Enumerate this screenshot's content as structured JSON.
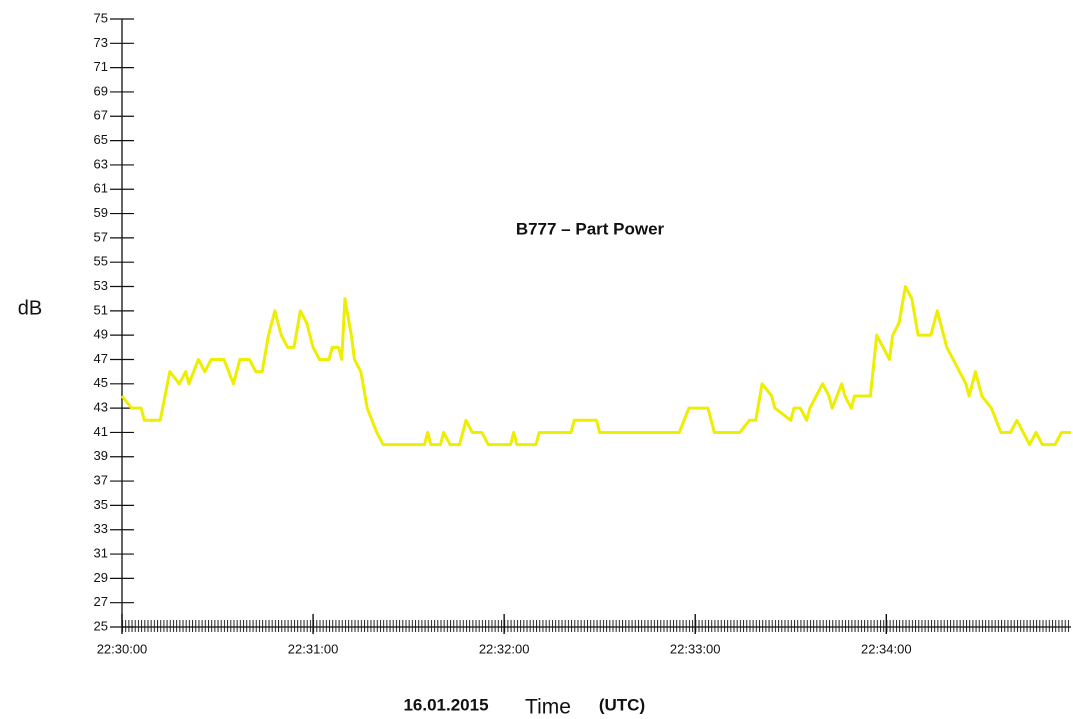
{
  "chart_data": {
    "type": "line",
    "title": "B777 – Part Power",
    "ylabel": "dB",
    "date": "16.01.2015",
    "xlabel": "Time",
    "xlabel_unit": "(UTC)",
    "color": "#eeee00",
    "xlim": [
      "22:30:00",
      "22:34:58"
    ],
    "xticks": [
      "22:30:00",
      "22:31:00",
      "22:32:00",
      "22:33:00",
      "22:34:00"
    ],
    "ylim": [
      25,
      75
    ],
    "yticks": [
      25,
      27,
      29,
      31,
      33,
      35,
      37,
      39,
      41,
      43,
      45,
      47,
      49,
      51,
      53,
      55,
      57,
      59,
      61,
      63,
      65,
      67,
      69,
      71,
      73,
      75
    ],
    "x": [
      "22:30:00",
      "22:30:03",
      "22:30:06",
      "22:30:07",
      "22:30:12",
      "22:30:15",
      "22:30:18",
      "22:30:20",
      "22:30:21",
      "22:30:24",
      "22:30:26",
      "22:30:28",
      "22:30:32",
      "22:30:35",
      "22:30:37",
      "22:30:40",
      "22:30:42",
      "22:30:44",
      "22:30:46",
      "22:30:48",
      "22:30:50",
      "22:30:52",
      "22:30:54",
      "22:30:56",
      "22:30:58",
      "22:31:00",
      "22:31:02",
      "22:31:05",
      "22:31:06",
      "22:31:08",
      "22:31:09",
      "22:31:10",
      "22:31:12",
      "22:31:13",
      "22:31:15",
      "22:31:17",
      "22:31:20",
      "22:31:22",
      "22:31:26",
      "22:31:35",
      "22:31:36",
      "22:31:37",
      "22:31:40",
      "22:31:41",
      "22:31:43",
      "22:31:46",
      "22:31:48",
      "22:31:50",
      "22:31:53",
      "22:31:55",
      "22:32:02",
      "22:32:03",
      "22:32:04",
      "22:32:10",
      "22:32:11",
      "22:32:21",
      "22:32:22",
      "22:32:29",
      "22:32:30",
      "22:32:55",
      "22:32:58",
      "22:33:04",
      "22:33:06",
      "22:33:14",
      "22:33:17",
      "22:33:19",
      "22:33:21",
      "22:33:24",
      "22:33:25",
      "22:33:30",
      "22:33:31",
      "22:33:33",
      "22:33:35",
      "22:33:36",
      "22:33:38",
      "22:33:40",
      "22:33:42",
      "22:33:43",
      "22:33:46",
      "22:33:47",
      "22:33:49",
      "22:33:50",
      "22:33:55",
      "22:33:57",
      "22:33:59",
      "22:34:01",
      "22:34:02",
      "22:34:04",
      "22:34:06",
      "22:34:08",
      "22:34:10",
      "22:34:14",
      "22:34:16",
      "22:34:19",
      "22:34:21",
      "22:34:23",
      "22:34:25",
      "22:34:26",
      "22:34:28",
      "22:34:30",
      "22:34:33",
      "22:34:36",
      "22:34:39",
      "22:34:41",
      "22:34:43",
      "22:34:45",
      "22:34:47",
      "22:34:49",
      "22:34:53",
      "22:34:55",
      "22:34:56",
      "22:34:58"
    ],
    "values": [
      44,
      43,
      43,
      42,
      42,
      46,
      45,
      46,
      45,
      47,
      46,
      47,
      47,
      45,
      47,
      47,
      46,
      46,
      49,
      51,
      49,
      48,
      48,
      51,
      50,
      48,
      47,
      47,
      48,
      48,
      47,
      52,
      49,
      47,
      46,
      43,
      41,
      40,
      40,
      40,
      41,
      40,
      40,
      41,
      40,
      40,
      42,
      41,
      41,
      40,
      40,
      41,
      40,
      40,
      41,
      41,
      42,
      42,
      41,
      41,
      43,
      43,
      41,
      41,
      42,
      42,
      45,
      44,
      43,
      42,
      43,
      43,
      42,
      43,
      44,
      45,
      44,
      43,
      45,
      44,
      43,
      44,
      44,
      49,
      48,
      47,
      49,
      50,
      53,
      52,
      49,
      49,
      51,
      48,
      47,
      46,
      45,
      44,
      46,
      44,
      43,
      41,
      41,
      42,
      41,
      40,
      41,
      40,
      40,
      41,
      41,
      41
    ]
  }
}
